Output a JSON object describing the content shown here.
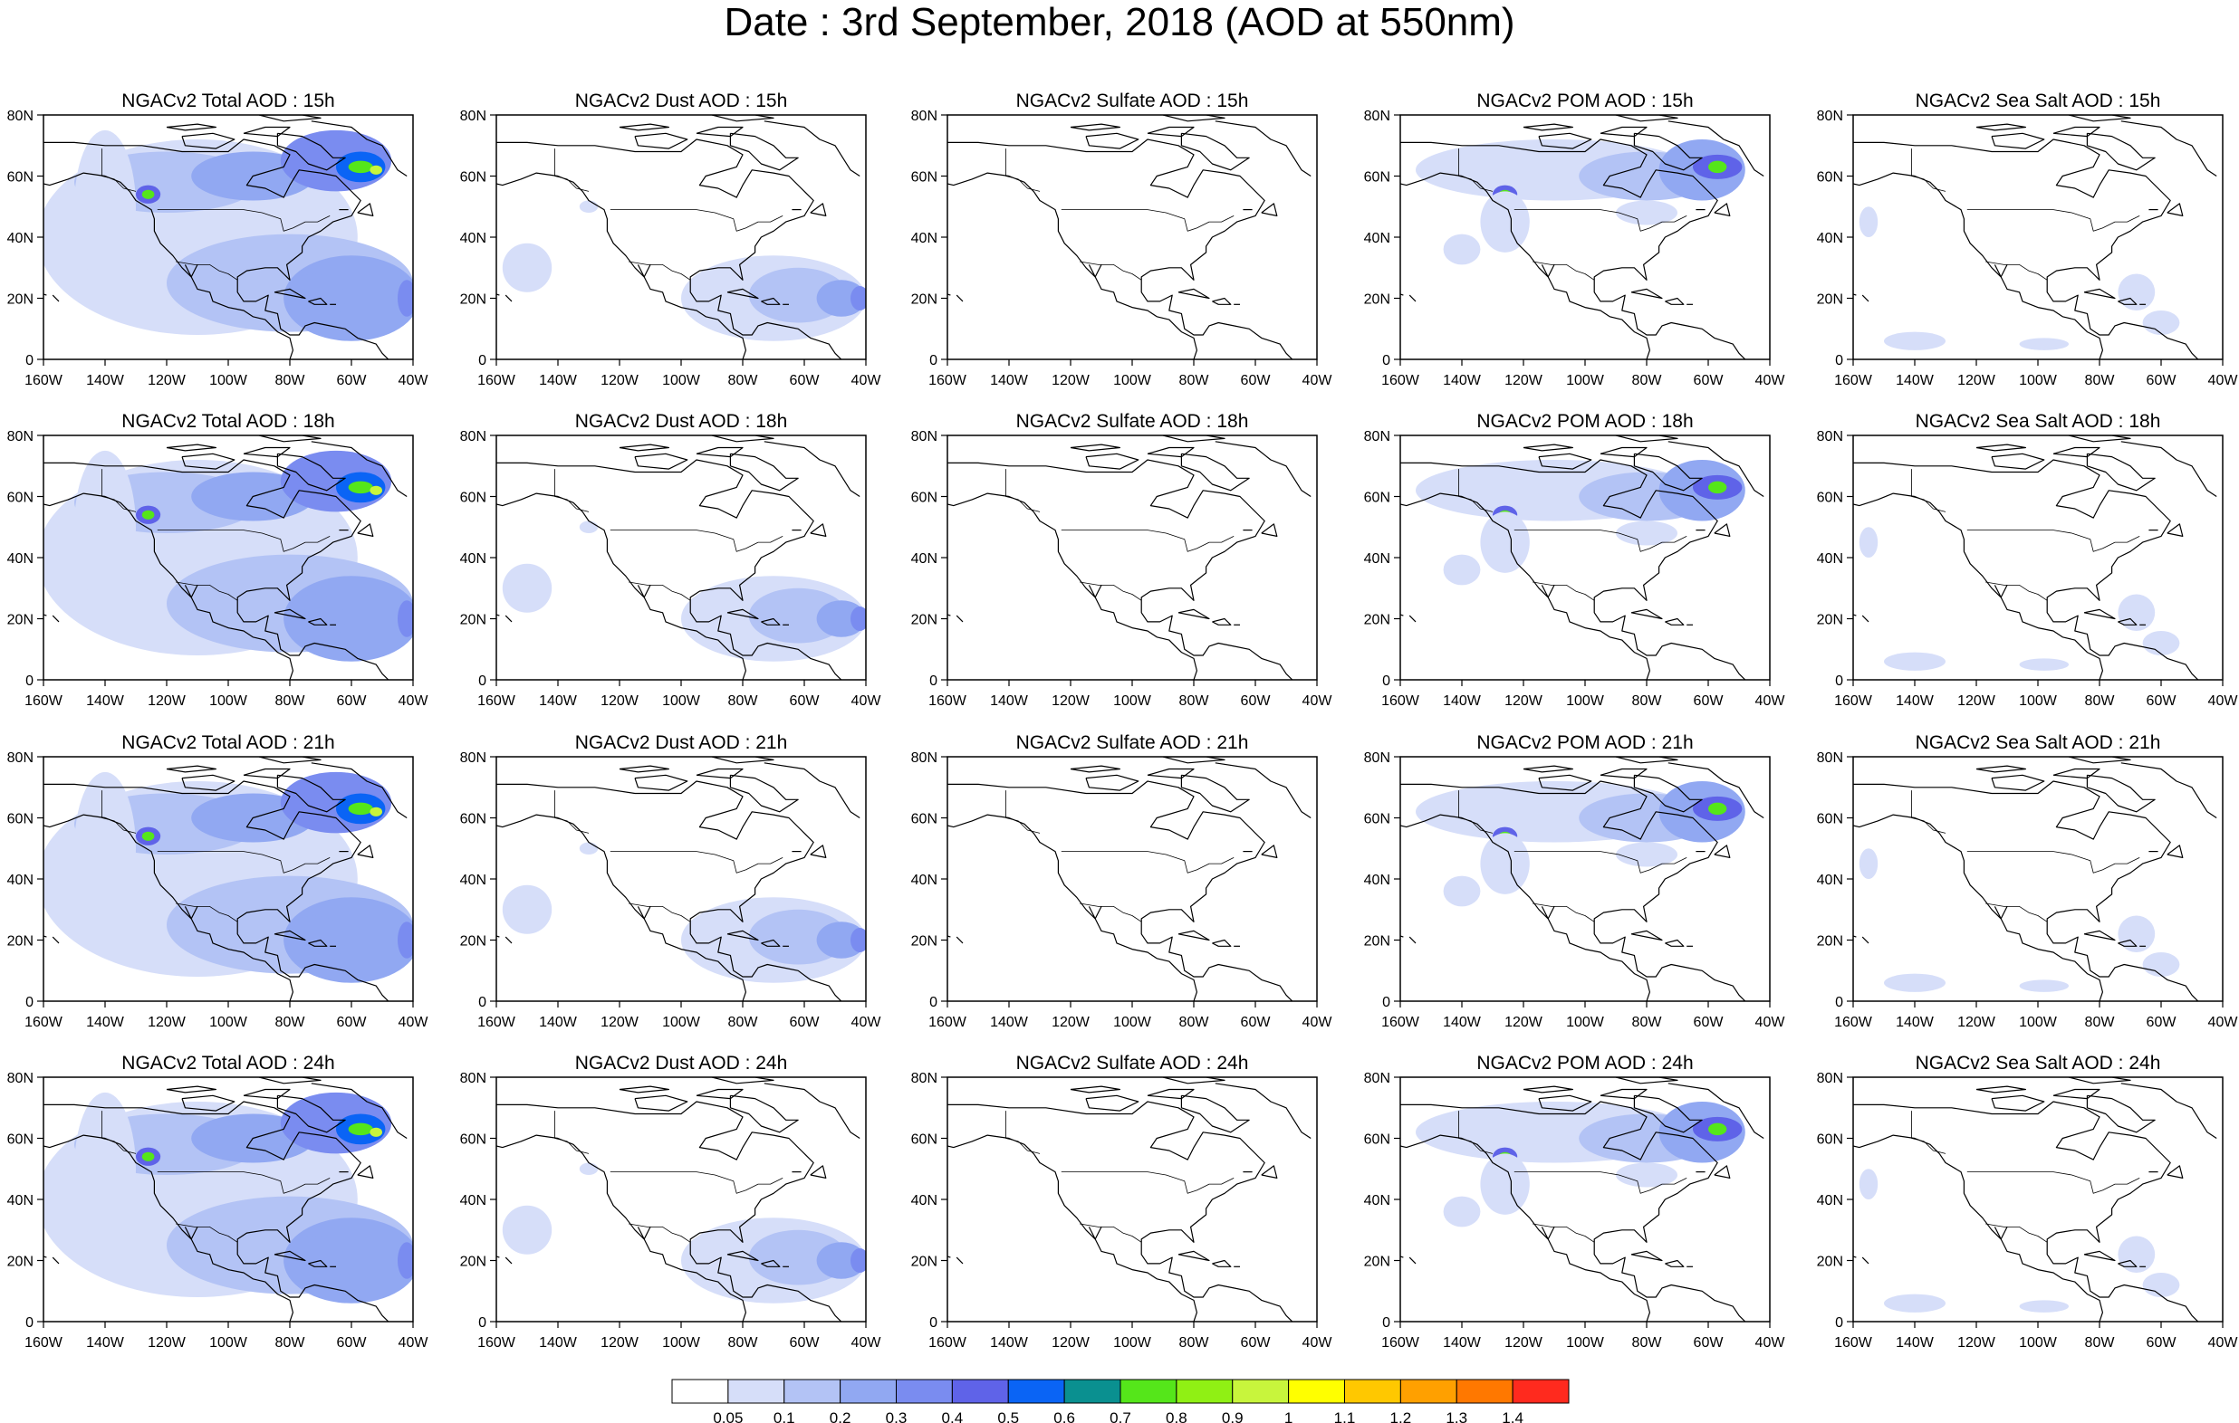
{
  "title": "Date : 3rd September, 2018 (AOD at 550nm)",
  "columns": [
    {
      "key": "total",
      "label": "NGACv2 Total AOD"
    },
    {
      "key": "dust",
      "label": "NGACv2 Dust AOD"
    },
    {
      "key": "sulfate",
      "label": "NGACv2 Sulfate AOD"
    },
    {
      "key": "pom",
      "label": "NGACv2 POM AOD"
    },
    {
      "key": "seasalt",
      "label": "NGACv2 Sea Salt AOD"
    }
  ],
  "rows": [
    "15h",
    "18h",
    "21h",
    "24h"
  ],
  "panel_titles": [
    [
      "NGACv2 Total AOD : 15h",
      "NGACv2 Dust AOD : 15h",
      "NGACv2 Sulfate AOD : 15h",
      "NGACv2 POM AOD : 15h",
      "NGACv2 Sea Salt AOD : 15h"
    ],
    [
      "NGACv2 Total AOD : 18h",
      "NGACv2 Dust AOD : 18h",
      "NGACv2 Sulfate AOD : 18h",
      "NGACv2 POM AOD : 18h",
      "NGACv2 Sea Salt AOD : 18h"
    ],
    [
      "NGACv2 Total AOD : 21h",
      "NGACv2 Dust AOD : 21h",
      "NGACv2 Sulfate AOD : 21h",
      "NGACv2 POM AOD : 21h",
      "NGACv2 Sea Salt AOD : 21h"
    ],
    [
      "NGACv2 Total AOD : 24h",
      "NGACv2 Dust AOD : 24h",
      "NGACv2 Sulfate AOD : 24h",
      "NGACv2 POM AOD : 24h",
      "NGACv2 Sea Salt  AOD : 24h"
    ]
  ],
  "x_ticks": [
    "160W",
    "140W",
    "120W",
    "100W",
    "80W",
    "60W",
    "40W"
  ],
  "y_ticks": [
    "0",
    "20N",
    "40N",
    "60N",
    "80N"
  ],
  "colorbar": {
    "labels": [
      "0.05",
      "0.1",
      "0.2",
      "0.3",
      "0.4",
      "0.5",
      "0.6",
      "0.7",
      "0.8",
      "0.9",
      "1",
      "1.1",
      "1.2",
      "1.3",
      "1.4"
    ],
    "colors": [
      "#ffffff",
      "#d6def9",
      "#b3c3f5",
      "#91a8f2",
      "#7a8cf0",
      "#5f63e8",
      "#0a64f5",
      "#0a9090",
      "#55e61a",
      "#90f014",
      "#c8f53c",
      "#ffff00",
      "#ffc800",
      "#ffa000",
      "#ff7800",
      "#ff2a1e"
    ]
  },
  "chart_data": {
    "type": "map-panels",
    "region": "North America",
    "lon_range": [
      "160W",
      "40W"
    ],
    "lat_range": [
      "0",
      "80N"
    ],
    "units": "AOD at 550nm",
    "plumes": {
      "total": [
        {
          "lon": -126,
          "lat": 54,
          "level": 8
        },
        {
          "lon": -57,
          "lat": 63,
          "level": 8
        },
        {
          "lon": -62,
          "lat": 58,
          "level": 7
        }
      ],
      "dust": [
        {
          "lon": -62,
          "lat": 21,
          "level": 4
        },
        {
          "lon": -42,
          "lat": 20,
          "level": 4
        }
      ],
      "sulfate": [],
      "pom": [
        {
          "lon": -126,
          "lat": 54,
          "level": 8
        },
        {
          "lon": -57,
          "lat": 63,
          "level": 8
        }
      ],
      "seasalt": [
        {
          "lon": -65,
          "lat": 12,
          "level": 1
        }
      ]
    }
  }
}
